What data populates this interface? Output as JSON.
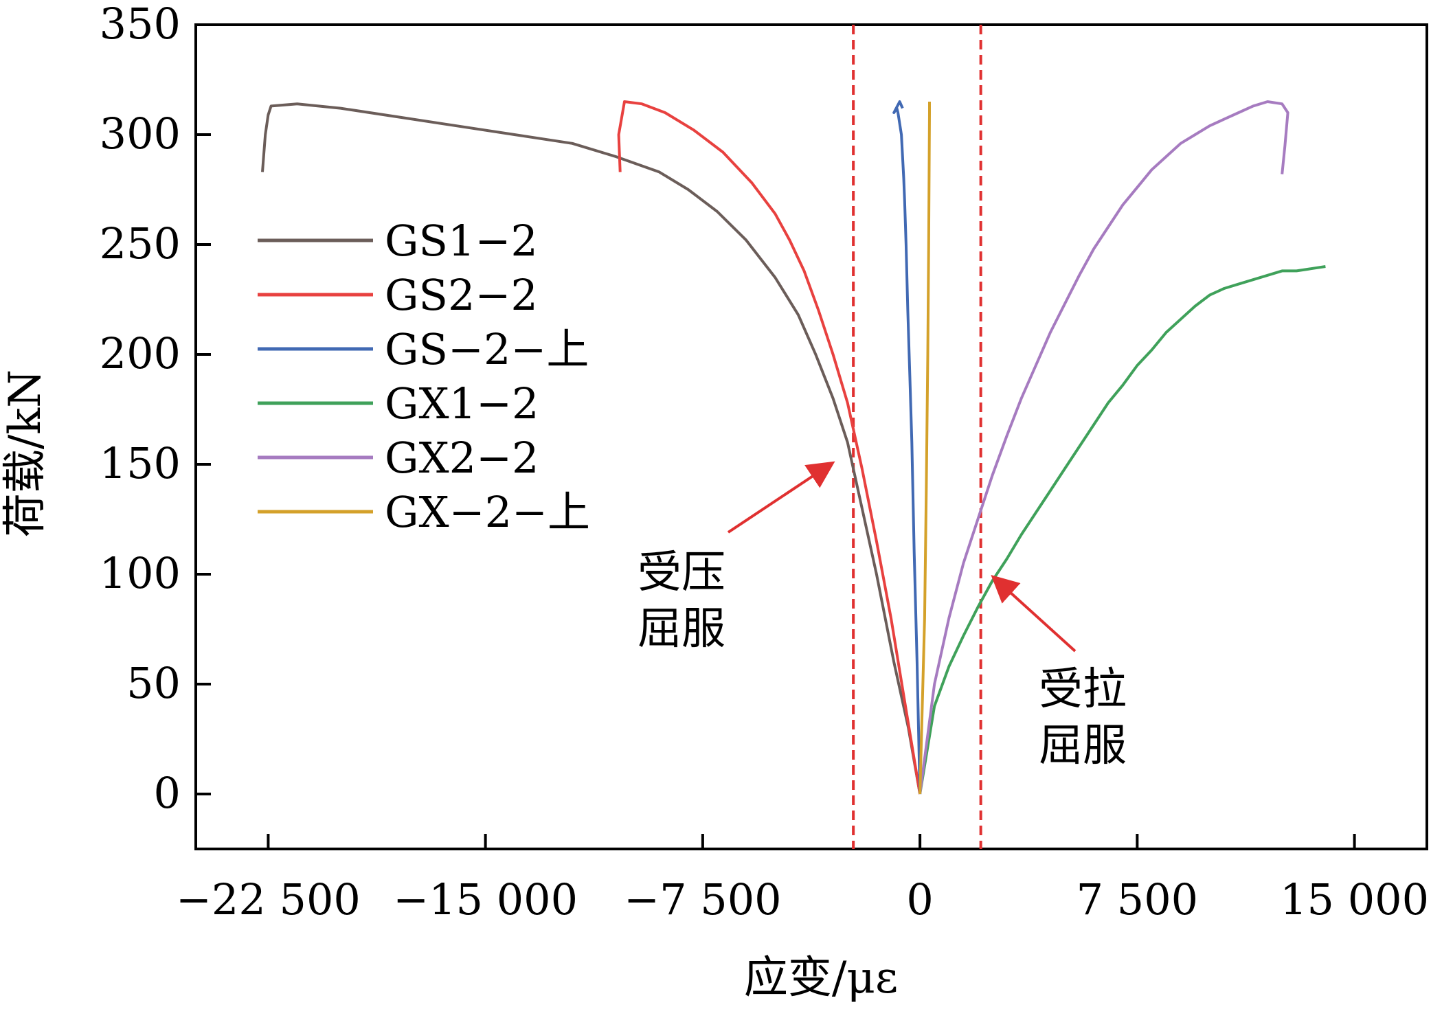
{
  "chart_data": {
    "type": "line",
    "title": "",
    "xlabel": "应变/με",
    "ylabel": "荷载/kN",
    "xlim": [
      -25000,
      17500
    ],
    "ylim": [
      -25,
      350
    ],
    "x_ticks": [
      -22500,
      -15000,
      -7500,
      0,
      7500,
      15000
    ],
    "x_tick_labels": [
      "−22 500",
      "−15 000",
      "−7 500",
      "0",
      "7 500",
      "15 000"
    ],
    "y_ticks": [
      0,
      50,
      100,
      150,
      200,
      250,
      300,
      350
    ],
    "y_tick_labels": [
      "0",
      "50",
      "100",
      "150",
      "200",
      "250",
      "300",
      "350"
    ],
    "grid": false,
    "legend_position": "left",
    "series": [
      {
        "name": "GS1−2",
        "color": "#6b5d59",
        "x": [
          0,
          -400,
          -900,
          -1500,
          -2000,
          -2500,
          -3000,
          -3600,
          -4200,
          -5000,
          -6000,
          -7000,
          -8000,
          -9000,
          -10500,
          -12000,
          -14000,
          -16000,
          -18000,
          -20000,
          -21500,
          -22400,
          -22500,
          -22600,
          -22700
        ],
        "y": [
          0,
          30,
          60,
          100,
          130,
          160,
          180,
          200,
          218,
          235,
          252,
          265,
          275,
          283,
          290,
          296,
          300,
          304,
          308,
          312,
          314,
          313,
          309,
          300,
          283
        ]
      },
      {
        "name": "GS2−2",
        "color": "#e8413f",
        "x": [
          0,
          -500,
          -1000,
          -1500,
          -2000,
          -2500,
          -3000,
          -3500,
          -4000,
          -4500,
          -5000,
          -5800,
          -6800,
          -7800,
          -8800,
          -9600,
          -10200,
          -10400,
          -10350
        ],
        "y": [
          0,
          40,
          80,
          115,
          148,
          178,
          200,
          220,
          238,
          252,
          264,
          278,
          292,
          302,
          310,
          314,
          315,
          300,
          283
        ]
      },
      {
        "name": "GS−2−上",
        "color": "#4169b3",
        "x": [
          0,
          -100,
          -200,
          -280,
          -350,
          -420,
          -480,
          -530,
          -560,
          -600,
          -640,
          -700,
          -760,
          -800,
          -900,
          -700,
          -600
        ],
        "y": [
          0,
          60,
          110,
          160,
          190,
          220,
          250,
          270,
          280,
          290,
          300,
          305,
          310,
          312,
          310,
          315,
          312
        ]
      },
      {
        "name": "GX1−2",
        "color": "#3fa15a",
        "x": [
          0,
          500,
          1000,
          1500,
          2000,
          2500,
          3000,
          3500,
          4000,
          4500,
          5000,
          5500,
          6000,
          6500,
          7000,
          7500,
          8000,
          8500,
          9000,
          9500,
          10000,
          10500,
          11000,
          11500,
          12000,
          12500,
          13000,
          13500,
          14000
        ],
        "y": [
          0,
          40,
          58,
          72,
          85,
          97,
          107,
          118,
          128,
          138,
          148,
          158,
          168,
          178,
          186,
          195,
          202,
          210,
          216,
          222,
          227,
          230,
          232,
          234,
          236,
          238,
          238,
          239,
          240
        ]
      },
      {
        "name": "GX2−2",
        "color": "#a67bc0",
        "x": [
          0,
          500,
          1000,
          1500,
          2000,
          2500,
          3000,
          3500,
          4000,
          4500,
          5000,
          5500,
          6000,
          6500,
          7000,
          7500,
          8000,
          8500,
          9000,
          9500,
          10000,
          10500,
          11000,
          11500,
          12000,
          12500,
          12700,
          12600,
          12500
        ],
        "y": [
          0,
          50,
          80,
          105,
          125,
          145,
          163,
          180,
          195,
          210,
          223,
          236,
          248,
          258,
          268,
          276,
          284,
          290,
          296,
          300,
          304,
          307,
          310,
          313,
          315,
          314,
          310,
          295,
          282
        ]
      },
      {
        "name": "GX−2−上",
        "color": "#d4a12a",
        "x": [
          0,
          80,
          160,
          220,
          270,
          300,
          320,
          330,
          330
        ],
        "y": [
          0,
          40,
          80,
          140,
          200,
          250,
          290,
          310,
          315
        ]
      }
    ],
    "reference_lines": [
      {
        "axis": "x",
        "value": -2300,
        "color": "#e03030",
        "style": "dashed"
      },
      {
        "axis": "x",
        "value": 2100,
        "color": "#e03030",
        "style": "dashed"
      }
    ],
    "annotations": [
      {
        "lines": [
          "受压",
          "屈服"
        ],
        "target": [
          -2900,
          150
        ]
      },
      {
        "lines": [
          "受拉",
          "屈服"
        ],
        "target": [
          2400,
          98
        ]
      }
    ]
  }
}
